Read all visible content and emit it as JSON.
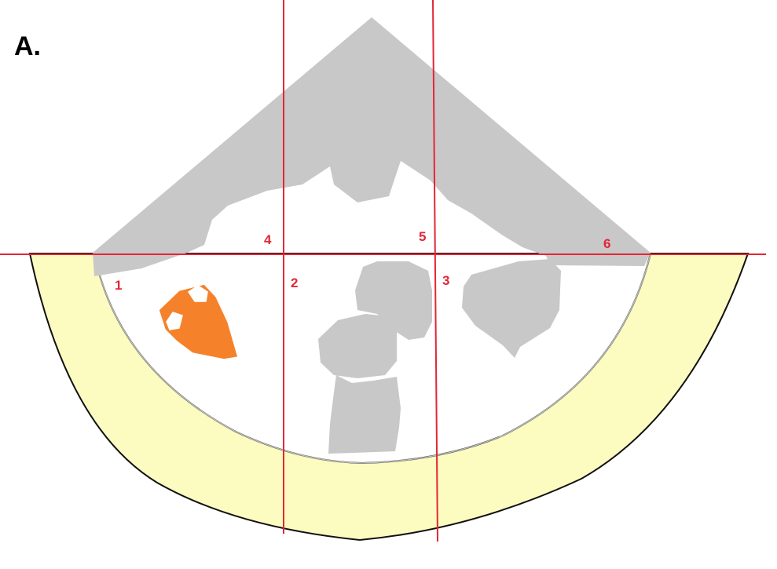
{
  "figure": {
    "panel_label": "A.",
    "region_labels": [
      "1",
      "2",
      "3",
      "4",
      "5",
      "6"
    ]
  },
  "colors": {
    "background": "#ffffff",
    "tissue_gray": "#c8c8c8",
    "outer_band": "#fdfcc0",
    "band_outline": "#111111",
    "highlight_orange": "#f5822a",
    "guide_lines": "#e32636",
    "label_red": "#e32636"
  }
}
